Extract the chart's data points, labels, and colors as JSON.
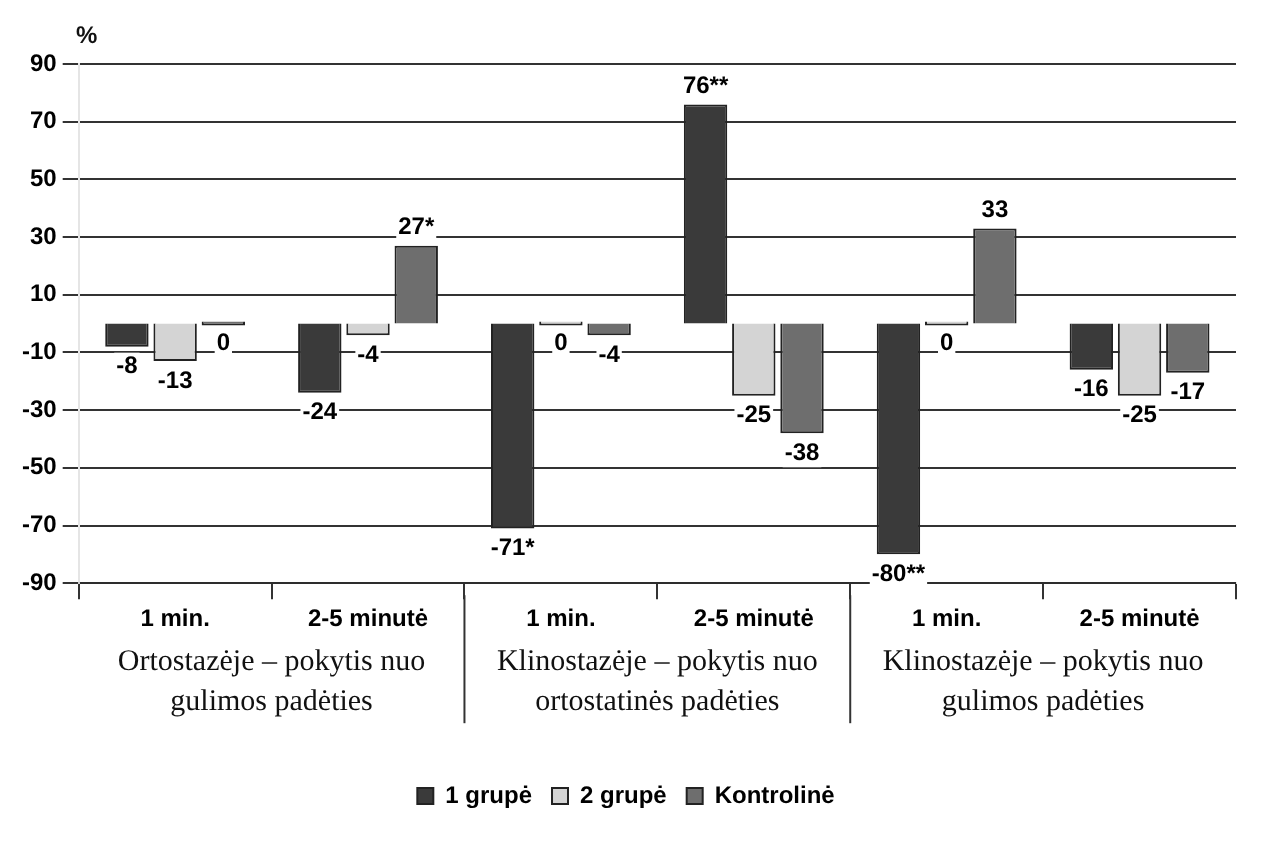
{
  "chart_data": {
    "type": "bar",
    "ylabel": "%",
    "categories": [
      "1 min.",
      "2-5 minutė",
      "1 min.",
      "2-5 minutė",
      "1 min.",
      "2-5 minutė"
    ],
    "series": [
      {
        "name": "1 grupė",
        "color": "#3a3a3a",
        "values": [
          -8,
          -24,
          -71,
          76,
          -80,
          -16
        ],
        "value_labels": [
          "-8",
          "-24",
          "-71*",
          "76**",
          "-80**",
          "-16"
        ]
      },
      {
        "name": "2 grupė",
        "color": "#d4d4d4",
        "values": [
          -13,
          -4,
          0,
          -25,
          0,
          -25
        ]
      },
      {
        "name": "Kontrolinė",
        "color": "#6e6e6e",
        "values": [
          0,
          27,
          -4,
          -38,
          33,
          -17
        ],
        "value_labels": [
          "0",
          "27*",
          "-4",
          "-38",
          "33",
          "-17"
        ]
      }
    ],
    "ylim": [
      -90,
      90
    ],
    "yticks": [
      -90,
      -70,
      -50,
      -30,
      -10,
      10,
      30,
      50,
      70,
      90
    ],
    "grid": "y",
    "legend": "bottom",
    "data_labels": true,
    "annotations": [
      "Ortostazėje – pokytis nuo gulimos padėties",
      "Klinostazėje – pokytis nuo ortostatinės padėties",
      "Klinostazėje – pokytis nuo gulimos padėties"
    ]
  }
}
